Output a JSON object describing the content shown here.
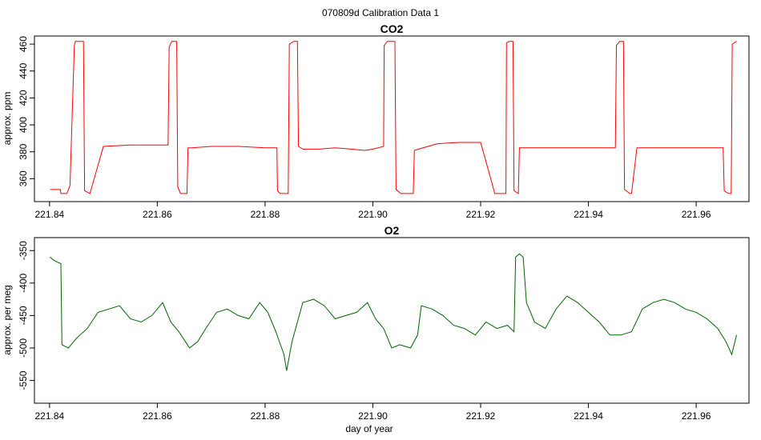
{
  "figure": {
    "title": "070809d   Calibration Data 1"
  },
  "chart_data": [
    {
      "type": "line",
      "title": "CO2",
      "ylabel": "approx. ppm",
      "xlabel": "",
      "xlim": [
        221.8372,
        221.9698
      ],
      "ylim": [
        343,
        466
      ],
      "xticks": [
        221.84,
        221.86,
        221.88,
        221.9,
        221.92,
        221.94,
        221.96
      ],
      "xtick_labels": [
        "221.84",
        "221.86",
        "221.88",
        "221.90",
        "221.92",
        "221.94",
        "221.96"
      ],
      "yticks": [
        360,
        380,
        400,
        420,
        440,
        460
      ],
      "ytick_labels": [
        "360",
        "380",
        "400",
        "420",
        "440",
        "460"
      ],
      "grid": false,
      "legend": "none",
      "series": [
        {
          "color": "#ff0000",
          "x": [
            221.8401,
            221.842,
            221.8421,
            221.8432,
            221.8438,
            221.8446,
            221.8448,
            221.8455,
            221.8463,
            221.8465,
            221.8475,
            221.85,
            221.855,
            221.86,
            221.862,
            221.8622,
            221.8627,
            221.8636,
            221.8638,
            221.8643,
            221.8655,
            221.8657,
            221.8665,
            221.87,
            221.875,
            221.88,
            221.8822,
            221.8823,
            221.8828,
            221.8843,
            221.8845,
            221.8853,
            221.886,
            221.8862,
            221.887,
            221.89,
            221.893,
            221.896,
            221.8985,
            221.9,
            221.902,
            221.9021,
            221.9027,
            221.9041,
            221.9043,
            221.9052,
            221.9075,
            221.9077,
            221.9085,
            221.912,
            221.916,
            221.92,
            221.9225,
            221.9226,
            221.9247,
            221.9248,
            221.9253,
            221.926,
            221.9262,
            221.927,
            221.9272,
            221.928,
            221.933,
            221.94,
            221.945,
            221.9452,
            221.9458,
            221.9465,
            221.9467,
            221.9477,
            221.948,
            221.949,
            221.955,
            221.962,
            221.965,
            221.9652,
            221.966,
            221.9665,
            221.9667,
            221.9675
          ],
          "y": [
            352,
            352,
            349,
            349,
            355,
            459,
            462,
            462,
            462,
            351,
            349,
            384,
            385,
            385,
            385,
            458,
            462,
            462,
            354,
            349,
            349,
            383,
            383,
            384,
            384,
            383,
            383,
            351,
            349,
            349,
            460,
            462,
            462,
            384,
            382,
            382,
            383,
            382,
            381,
            382,
            384,
            459,
            462,
            462,
            352,
            349,
            349,
            381,
            382,
            386,
            387,
            387,
            351,
            349,
            349,
            461,
            462,
            462,
            351,
            349,
            383,
            383,
            383,
            383,
            383,
            459,
            462,
            462,
            352,
            349,
            349,
            383,
            383,
            383,
            383,
            351,
            349,
            349,
            460,
            462
          ]
        }
      ]
    },
    {
      "type": "line",
      "title": "O2",
      "ylabel": "approx. per meg",
      "xlabel": "day of year",
      "xlim": [
        221.8372,
        221.9698
      ],
      "ylim": [
        -585,
        -330
      ],
      "xticks": [
        221.84,
        221.86,
        221.88,
        221.9,
        221.92,
        221.94,
        221.96
      ],
      "xtick_labels": [
        "221.84",
        "221.86",
        "221.88",
        "221.90",
        "221.92",
        "221.94",
        "221.96"
      ],
      "yticks": [
        -550,
        -500,
        -450,
        -400,
        -350
      ],
      "ytick_labels": [
        "-550",
        "-500",
        "-450",
        "-400",
        "-350"
      ],
      "grid": false,
      "legend": "none",
      "series": [
        {
          "color": "#006400",
          "x": [
            221.8401,
            221.8408,
            221.8415,
            221.8421,
            221.8423,
            221.8435,
            221.845,
            221.847,
            221.849,
            221.851,
            221.853,
            221.855,
            221.857,
            221.859,
            221.861,
            221.8625,
            221.864,
            221.866,
            221.8675,
            221.869,
            221.871,
            221.873,
            221.875,
            221.877,
            221.879,
            221.8805,
            221.882,
            221.8835,
            221.884,
            221.885,
            221.887,
            221.889,
            221.891,
            221.893,
            221.895,
            221.897,
            221.899,
            221.9005,
            221.902,
            221.9035,
            221.905,
            221.907,
            221.9083,
            221.909,
            221.911,
            221.913,
            221.915,
            221.917,
            221.919,
            221.921,
            221.923,
            221.925,
            221.9262,
            221.9265,
            221.9272,
            221.9279,
            221.9285,
            221.93,
            221.932,
            221.934,
            221.936,
            221.938,
            221.94,
            221.942,
            221.944,
            221.946,
            221.948,
            221.95,
            221.952,
            221.954,
            221.956,
            221.958,
            221.96,
            221.962,
            221.964,
            221.9655,
            221.9666,
            221.9675
          ],
          "y": [
            -360,
            -365,
            -368,
            -370,
            -495,
            -500,
            -485,
            -470,
            -445,
            -440,
            -435,
            -455,
            -460,
            -450,
            -430,
            -460,
            -475,
            -500,
            -490,
            -470,
            -445,
            -440,
            -450,
            -455,
            -430,
            -445,
            -475,
            -510,
            -535,
            -490,
            -430,
            -425,
            -435,
            -455,
            -450,
            -445,
            -430,
            -455,
            -470,
            -500,
            -495,
            -500,
            -480,
            -435,
            -440,
            -450,
            -465,
            -470,
            -480,
            -460,
            -470,
            -465,
            -475,
            -360,
            -355,
            -360,
            -430,
            -460,
            -470,
            -440,
            -420,
            -430,
            -445,
            -460,
            -480,
            -480,
            -475,
            -440,
            -430,
            -425,
            -430,
            -440,
            -445,
            -455,
            -470,
            -490,
            -510,
            -480
          ]
        }
      ]
    }
  ]
}
